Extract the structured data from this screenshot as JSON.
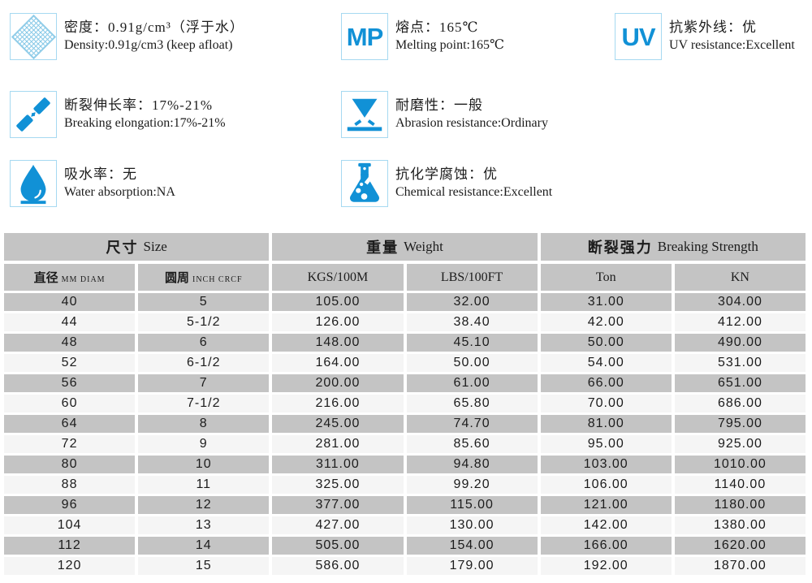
{
  "colors": {
    "blue": "#1191d6",
    "icon_border": "#a6d9f1",
    "mesh_blue": "#8ccbe8",
    "cell_gray": "#c4c4c4",
    "cell_light": "#f5f5f5",
    "text": "#1c1c1c"
  },
  "properties": [
    {
      "id": "density",
      "zh": "密度：0.91g/cm³（浮于水）",
      "en": "Density:0.91g/cm3 (keep afloat)"
    },
    {
      "id": "melting-point",
      "icon_text": "MP",
      "zh": "熔点：165℃",
      "en": "Melting point:165℃"
    },
    {
      "id": "uv-resistance",
      "icon_text": "UV",
      "zh": "抗紫外线：优",
      "en": "UV resistance:Excellent"
    },
    {
      "id": "breaking-elongation",
      "zh": "断裂伸长率：17%-21%",
      "en": "Breaking elongation:17%-21%"
    },
    {
      "id": "abrasion-resistance",
      "zh": "耐磨性：一般",
      "en": "Abrasion resistance:Ordinary"
    },
    {
      "id": "water-absorption",
      "zh": "吸水率：无",
      "en": "Water absorption:NA"
    },
    {
      "id": "chemical-resistance",
      "zh": "抗化学腐蚀：优",
      "en": "Chemical resistance:Excellent"
    }
  ],
  "table": {
    "groups": [
      {
        "zh": "尺寸",
        "en": "Size"
      },
      {
        "zh": "重量",
        "en": "Weight"
      },
      {
        "zh": "断裂强力",
        "en": "Breaking Strength"
      }
    ],
    "columns": [
      {
        "zh": "直径",
        "sub": "MM DIAM"
      },
      {
        "zh": "圆周",
        "sub": "INCH CRCF"
      },
      {
        "en": "KGS/100M"
      },
      {
        "en": "LBS/100FT"
      },
      {
        "en": "Ton"
      },
      {
        "en": "KN"
      }
    ],
    "rows": [
      [
        "40",
        "5",
        "105.00",
        "32.00",
        "31.00",
        "304.00"
      ],
      [
        "44",
        "5-1/2",
        "126.00",
        "38.40",
        "42.00",
        "412.00"
      ],
      [
        "48",
        "6",
        "148.00",
        "45.10",
        "50.00",
        "490.00"
      ],
      [
        "52",
        "6-1/2",
        "164.00",
        "50.00",
        "54.00",
        "531.00"
      ],
      [
        "56",
        "7",
        "200.00",
        "61.00",
        "66.00",
        "651.00"
      ],
      [
        "60",
        "7-1/2",
        "216.00",
        "65.80",
        "70.00",
        "686.00"
      ],
      [
        "64",
        "8",
        "245.00",
        "74.70",
        "81.00",
        "795.00"
      ],
      [
        "72",
        "9",
        "281.00",
        "85.60",
        "95.00",
        "925.00"
      ],
      [
        "80",
        "10",
        "311.00",
        "94.80",
        "103.00",
        "1010.00"
      ],
      [
        "88",
        "11",
        "325.00",
        "99.20",
        "106.00",
        "1140.00"
      ],
      [
        "96",
        "12",
        "377.00",
        "115.00",
        "121.00",
        "1180.00"
      ],
      [
        "104",
        "13",
        "427.00",
        "130.00",
        "142.00",
        "1380.00"
      ],
      [
        "112",
        "14",
        "505.00",
        "154.00",
        "166.00",
        "1620.00"
      ],
      [
        "120",
        "15",
        "586.00",
        "179.00",
        "192.00",
        "1870.00"
      ]
    ]
  }
}
